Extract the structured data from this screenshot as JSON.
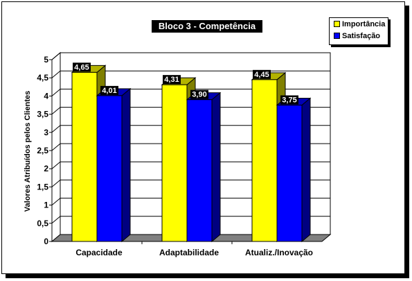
{
  "chart_data": {
    "type": "bar",
    "title": "Bloco 3 - Competência",
    "ylabel": "Valores Atribuídos pelos Clientes",
    "xlabel": "",
    "categories": [
      "Capacidade",
      "Adaptabilidade",
      "Atualiz./Inovação"
    ],
    "series": [
      {
        "name": "Importância",
        "color": "#ffff00",
        "values": [
          4.65,
          4.31,
          4.45
        ],
        "labels": [
          "4,65",
          "4,31",
          "4,45"
        ]
      },
      {
        "name": "Satisfação",
        "color": "#0000ff",
        "values": [
          4.01,
          3.9,
          3.75
        ],
        "labels": [
          "4,01",
          "3,90",
          "3,75"
        ]
      }
    ],
    "ylim": [
      0,
      5
    ],
    "yticks": [
      "0",
      "0,5",
      "1",
      "1,5",
      "2",
      "2,5",
      "3",
      "3,5",
      "4",
      "4,5",
      "5"
    ],
    "grid": true,
    "legend": "top-right",
    "style": "3d"
  }
}
